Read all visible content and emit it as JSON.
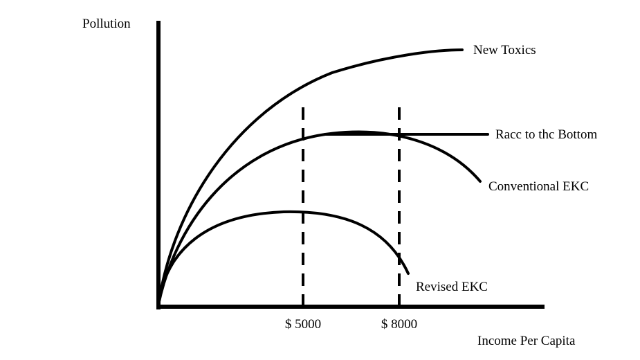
{
  "diagram": {
    "y_axis_label": "Pollution",
    "x_axis_label": "Income Per Capita",
    "curves": [
      {
        "id": "new-toxics",
        "label": "New Toxics"
      },
      {
        "id": "race-to-bottom",
        "label": "Racc to thc Bottom"
      },
      {
        "id": "conventional-ekc",
        "label": "Conventional EKC"
      },
      {
        "id": "revised-ekc",
        "label": "Revised EKC"
      }
    ],
    "markers": [
      {
        "id": "income-5000",
        "label": "$ 5000"
      },
      {
        "id": "income-8000",
        "label": "$ 8000"
      }
    ],
    "colors": {
      "ink": "#000000",
      "background": "#ffffff"
    }
  }
}
